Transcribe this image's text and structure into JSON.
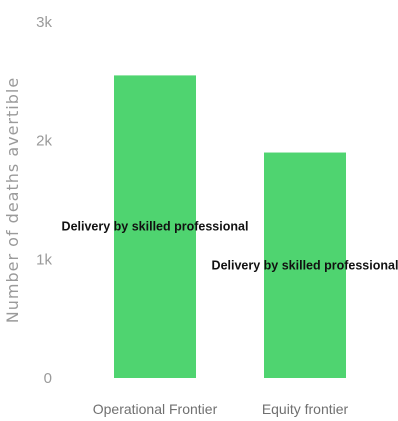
{
  "chart_data": {
    "type": "bar",
    "title": "",
    "xlabel": "",
    "ylabel": "Number of deaths avertible",
    "ylim": [
      0,
      3000
    ],
    "y_ticks": [
      0,
      1000,
      2000,
      3000
    ],
    "y_tick_labels": [
      "0",
      "1k",
      "2k",
      "3k"
    ],
    "grid": false,
    "categories": [
      "Operational Frontier",
      "Equity frontier"
    ],
    "series": [
      {
        "name": "Delivery by skilled professional",
        "color": "#4fd470",
        "values": [
          2550,
          1900
        ]
      }
    ],
    "data_labels": [
      "Delivery by skilled professional",
      "Delivery by skilled professional"
    ]
  }
}
